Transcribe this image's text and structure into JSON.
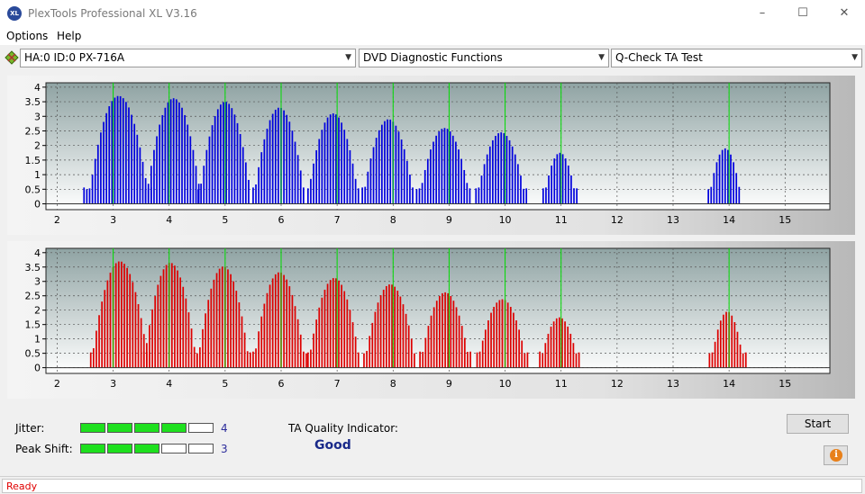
{
  "window": {
    "title": "PlexTools Professional XL V3.16",
    "logo_text": "XL",
    "minimize_icon": "–",
    "maximize_icon": "☐",
    "close_icon": "✕"
  },
  "menu": {
    "items": [
      {
        "label": "Options"
      },
      {
        "label": "Help"
      }
    ]
  },
  "toolbar": {
    "drive": "HA:0 ID:0  PX-716A",
    "function": "DVD Diagnostic Functions",
    "test": "Q-Check TA Test"
  },
  "chart_data": [
    {
      "type": "bar",
      "xlim": [
        1.8,
        15.8
      ],
      "ylim": [
        -0.2,
        4.15
      ],
      "x_ticks": [
        2,
        3,
        4,
        5,
        6,
        7,
        8,
        9,
        10,
        11,
        12,
        13,
        14,
        15
      ],
      "y_ticks": [
        0,
        0.5,
        1,
        1.5,
        2,
        2.5,
        3,
        3.5,
        4
      ],
      "y_tick_labels": [
        "0",
        "0.5",
        "1",
        "1.5",
        "2",
        "2.5",
        "3",
        "3.5",
        "4"
      ],
      "marker_lines": [
        3,
        4,
        5,
        6,
        7,
        8,
        9,
        10,
        11,
        14
      ],
      "bar_color": "#0000dd",
      "marker_color": "#00dd00",
      "grid": true,
      "peaks": [
        {
          "center": 3.1,
          "height": 3.7,
          "halfwidth": 0.55,
          "start": 2.48,
          "end": 3.72
        },
        {
          "center": 4.08,
          "height": 3.62,
          "halfwidth": 0.5,
          "start": 3.58,
          "end": 4.55
        },
        {
          "center": 5.0,
          "height": 3.5,
          "halfwidth": 0.48,
          "start": 4.52,
          "end": 5.45
        },
        {
          "center": 5.97,
          "height": 3.3,
          "halfwidth": 0.47,
          "start": 5.5,
          "end": 6.42
        },
        {
          "center": 6.93,
          "height": 3.1,
          "halfwidth": 0.47,
          "start": 6.48,
          "end": 7.4
        },
        {
          "center": 7.92,
          "height": 2.9,
          "halfwidth": 0.47,
          "start": 7.45,
          "end": 8.38
        },
        {
          "center": 8.92,
          "height": 2.6,
          "halfwidth": 0.47,
          "start": 8.42,
          "end": 9.38
        },
        {
          "center": 9.93,
          "height": 2.45,
          "halfwidth": 0.45,
          "start": 9.48,
          "end": 10.38
        },
        {
          "center": 10.98,
          "height": 1.75,
          "halfwidth": 0.3,
          "start": 10.68,
          "end": 11.28
        },
        {
          "center": 13.93,
          "height": 1.9,
          "halfwidth": 0.3,
          "start": 13.63,
          "end": 14.2
        }
      ]
    },
    {
      "type": "bar",
      "xlim": [
        1.8,
        15.8
      ],
      "ylim": [
        -0.2,
        4.15
      ],
      "x_ticks": [
        2,
        3,
        4,
        5,
        6,
        7,
        8,
        9,
        10,
        11,
        12,
        13,
        14,
        15
      ],
      "y_ticks": [
        0,
        0.5,
        1,
        1.5,
        2,
        2.5,
        3,
        3.5,
        4
      ],
      "y_tick_labels": [
        "0",
        "0.5",
        "1",
        "1.5",
        "2",
        "2.5",
        "3",
        "3.5",
        "4"
      ],
      "marker_lines": [
        3,
        4,
        5,
        6,
        7,
        8,
        9,
        10,
        11,
        14
      ],
      "bar_color": "#dd0000",
      "marker_color": "#00dd00",
      "grid": true,
      "peaks": [
        {
          "center": 3.12,
          "height": 3.7,
          "halfwidth": 0.52,
          "start": 2.6,
          "end": 3.65
        },
        {
          "center": 4.02,
          "height": 3.65,
          "halfwidth": 0.48,
          "start": 3.55,
          "end": 4.52
        },
        {
          "center": 4.97,
          "height": 3.52,
          "halfwidth": 0.47,
          "start": 4.5,
          "end": 5.45
        },
        {
          "center": 5.97,
          "height": 3.32,
          "halfwidth": 0.47,
          "start": 5.5,
          "end": 6.45
        },
        {
          "center": 6.95,
          "height": 3.12,
          "halfwidth": 0.47,
          "start": 6.48,
          "end": 7.42
        },
        {
          "center": 7.95,
          "height": 2.9,
          "halfwidth": 0.47,
          "start": 7.48,
          "end": 8.42
        },
        {
          "center": 8.93,
          "height": 2.62,
          "halfwidth": 0.45,
          "start": 8.48,
          "end": 9.38
        },
        {
          "center": 9.95,
          "height": 2.38,
          "halfwidth": 0.45,
          "start": 9.5,
          "end": 10.4
        },
        {
          "center": 10.97,
          "height": 1.75,
          "halfwidth": 0.35,
          "start": 10.62,
          "end": 11.32
        },
        {
          "center": 13.97,
          "height": 1.95,
          "halfwidth": 0.3,
          "start": 13.65,
          "end": 14.3
        }
      ]
    }
  ],
  "metrics": {
    "jitter": {
      "label": "Jitter:",
      "value": "4",
      "segments_on": 4,
      "segments_total": 5
    },
    "peak_shift": {
      "label": "Peak Shift:",
      "value": "3",
      "segments_on": 3,
      "segments_total": 5
    }
  },
  "quality": {
    "label": "TA Quality Indicator:",
    "value": "Good"
  },
  "buttons": {
    "start": "Start",
    "info_icon": "i"
  },
  "status": {
    "text": "Ready"
  }
}
